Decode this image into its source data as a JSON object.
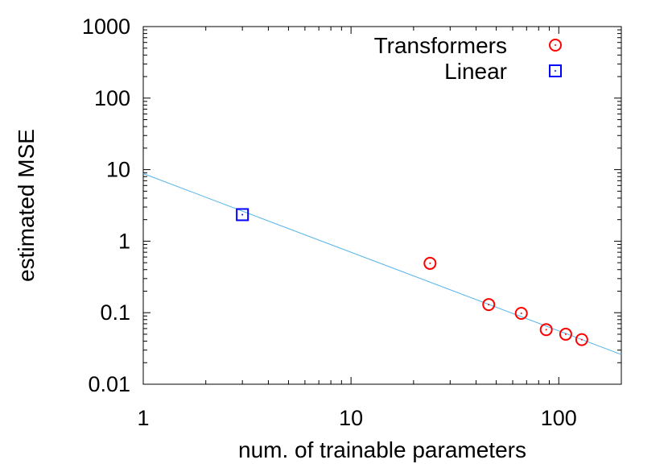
{
  "chart_data": {
    "type": "scatter",
    "title": "",
    "xlabel": "num. of trainable parameters",
    "ylabel": "estimated MSE",
    "xscale": "log",
    "yscale": "log",
    "xlim": [
      1,
      200
    ],
    "ylim": [
      0.01,
      1000
    ],
    "xticks": [
      {
        "value": 1,
        "label": "1"
      },
      {
        "value": 10,
        "label": "10"
      },
      {
        "value": 100,
        "label": "100"
      }
    ],
    "yticks": [
      {
        "value": 0.01,
        "label": "0.01"
      },
      {
        "value": 0.1,
        "label": "0.1"
      },
      {
        "value": 1,
        "label": "1"
      },
      {
        "value": 10,
        "label": "10"
      },
      {
        "value": 100,
        "label": "100"
      },
      {
        "value": 1000,
        "label": "1000"
      }
    ],
    "grid": false,
    "legend_position": "top-right",
    "series": [
      {
        "name": "Transformers",
        "marker": "circle",
        "color": "#ff0000",
        "points": [
          {
            "x": 24,
            "y": 0.49
          },
          {
            "x": 46,
            "y": 0.13
          },
          {
            "x": 66,
            "y": 0.098
          },
          {
            "x": 87,
            "y": 0.058
          },
          {
            "x": 108,
            "y": 0.05
          },
          {
            "x": 129,
            "y": 0.042
          }
        ]
      },
      {
        "name": "Linear",
        "marker": "square",
        "color": "#0000ff",
        "points": [
          {
            "x": 3,
            "y": 2.35
          }
        ]
      }
    ],
    "fit_line": {
      "color": "#56b4e9",
      "points": [
        {
          "x": 1,
          "y": 8.8
        },
        {
          "x": 200,
          "y": 0.026
        }
      ]
    }
  }
}
